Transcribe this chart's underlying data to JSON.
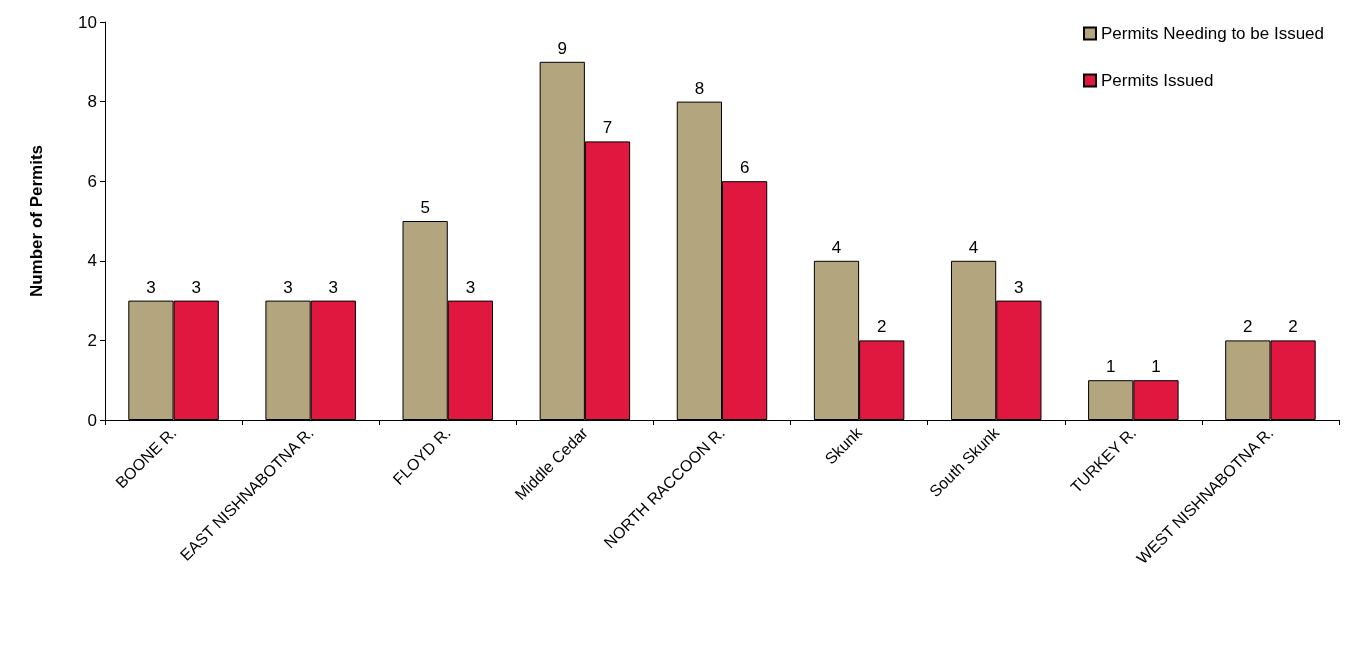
{
  "chart_data": {
    "type": "bar",
    "ylabel": "Number of Permits",
    "categories": [
      "BOONE R.",
      "EAST NISHNABOTNA R.",
      "FLOYD R.",
      "Middle Cedar",
      "NORTH RACCOON R.",
      "Skunk",
      "South Skunk",
      "TURKEY R.",
      "WEST NISHNABOTNA R."
    ],
    "series": [
      {
        "name": "Permits Needing to be Issued",
        "color": "#b3a57e",
        "values": [
          3,
          3,
          5,
          9,
          8,
          4,
          4,
          1,
          2
        ]
      },
      {
        "name": "Permits Issued",
        "color": "#e0173f",
        "values": [
          3,
          3,
          3,
          7,
          6,
          2,
          3,
          1,
          2
        ]
      }
    ],
    "ylim": [
      0,
      10
    ],
    "yticks": [
      0,
      2,
      4,
      6,
      8,
      10
    ],
    "grid": false,
    "legend": "top right",
    "data_labels": true
  }
}
